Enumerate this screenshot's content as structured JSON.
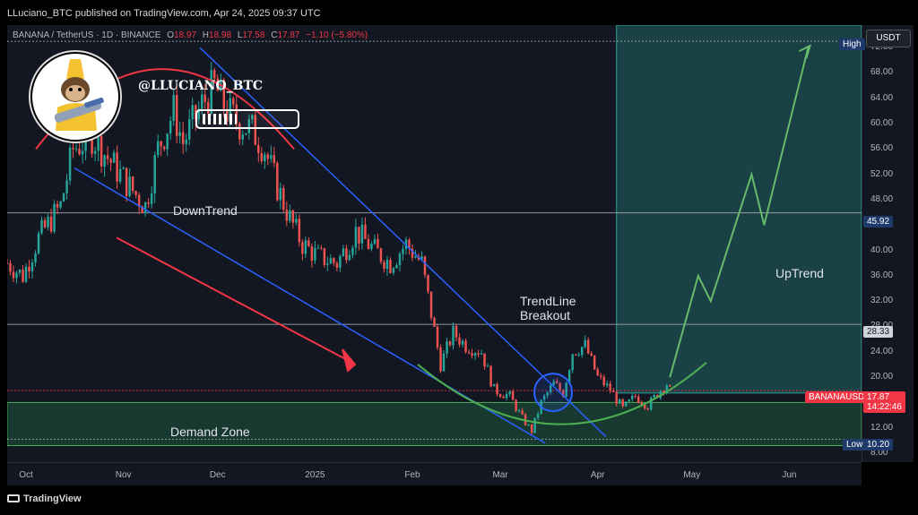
{
  "header": {
    "published_text": "LLuciano_BTC published on TradingView.com, Apr 24, 2025 09:37 UTC"
  },
  "symbol_bar": {
    "symbol": "BANANA / TetherUS · 1D · BINANCE",
    "open_label": "O",
    "open": "18.97",
    "high_label": "H",
    "high": "18.98",
    "low_label": "L",
    "low": "17.58",
    "close_label": "C",
    "close": "17.87",
    "change": "−1.10 (−5.80%)"
  },
  "currency_button": "USDT",
  "author_handle": "@LLUCIANO_BTC",
  "annotations": {
    "downtrend": "DownTrend",
    "trendline_breakout_line1": "TrendLine",
    "trendline_breakout_line2": "Breakout",
    "uptrend": "UpTrend",
    "demand_zone": "Demand Zone"
  },
  "price_badges": {
    "high_label": "High",
    "level_45": "45.92",
    "level_28": "28.33",
    "symbol_tag": "BANANAUSDT",
    "last_price": "17.87",
    "countdown": "14:22:46",
    "low_label": "Low",
    "low_value": "10.20"
  },
  "colors": {
    "up": "#26a69a",
    "down": "#ef5350",
    "background": "#131722",
    "trendline": "#2962ff",
    "arc_red": "#f23645",
    "curve_green": "#4caf50",
    "projection": "#66bb6a",
    "demand_zone": "#1b4d3e",
    "projection_box": "#1d4a4a",
    "badge_blue": "#1e3a6b",
    "badge_red": "#f23645"
  },
  "footer": {
    "logo_text": "TradingView"
  },
  "chart_data": {
    "type": "candlestick",
    "symbol": "BANANA / TetherUS",
    "interval": "1D",
    "exchange": "BINANCE",
    "ylim": [
      8,
      74
    ],
    "y_ticks": [
      "72.00",
      "68.00",
      "64.00",
      "60.00",
      "56.00",
      "52.00",
      "48.00",
      "44.00",
      "40.00",
      "36.00",
      "32.00",
      "28.00",
      "24.00",
      "20.00",
      "16.00",
      "12.00",
      "8.00"
    ],
    "x_ticks": [
      "Oct",
      "Nov",
      "Dec",
      "2025",
      "Feb",
      "Mar",
      "Apr",
      "May",
      "Jun"
    ],
    "x_range": [
      "2024-09-25",
      "2025-06-24"
    ],
    "levels": [
      {
        "label": "High",
        "value": 73.0
      },
      {
        "label": "45.92",
        "value": 45.92
      },
      {
        "label": "28.33",
        "value": 28.33
      },
      {
        "label": "17.87",
        "value": 17.87
      },
      {
        "label": "Low 10.20",
        "value": 10.2
      }
    ],
    "demand_zone": {
      "from": 9.2,
      "to": 16.0
    },
    "last_ohlc": {
      "open": 18.97,
      "high": 18.98,
      "low": 17.58,
      "close": 17.87
    },
    "close_path": [
      {
        "date": "2024-09-25",
        "price": 38.0
      },
      {
        "date": "2024-09-30",
        "price": 36.0
      },
      {
        "date": "2024-10-05",
        "price": 42.0
      },
      {
        "date": "2024-10-12",
        "price": 47.0
      },
      {
        "date": "2024-10-16",
        "price": 56.0
      },
      {
        "date": "2024-10-22",
        "price": 58.0
      },
      {
        "date": "2024-10-28",
        "price": 54.0
      },
      {
        "date": "2024-11-03",
        "price": 50.0
      },
      {
        "date": "2024-11-08",
        "price": 47.0
      },
      {
        "date": "2024-11-12",
        "price": 56.0
      },
      {
        "date": "2024-11-17",
        "price": 62.0
      },
      {
        "date": "2024-11-20",
        "price": 57.0
      },
      {
        "date": "2024-11-26",
        "price": 63.0
      },
      {
        "date": "2024-11-30",
        "price": 66.0
      },
      {
        "date": "2024-12-04",
        "price": 62.0
      },
      {
        "date": "2024-12-08",
        "price": 60.0
      },
      {
        "date": "2024-12-12",
        "price": 59.0
      },
      {
        "date": "2024-12-16",
        "price": 56.0
      },
      {
        "date": "2024-12-20",
        "price": 50.0
      },
      {
        "date": "2024-12-24",
        "price": 45.0
      },
      {
        "date": "2024-12-28",
        "price": 41.0
      },
      {
        "date": "2025-01-02",
        "price": 39.0
      },
      {
        "date": "2025-01-08",
        "price": 38.0
      },
      {
        "date": "2025-01-14",
        "price": 43.0
      },
      {
        "date": "2025-01-20",
        "price": 40.0
      },
      {
        "date": "2025-01-25",
        "price": 38.0
      },
      {
        "date": "2025-01-30",
        "price": 41.0
      },
      {
        "date": "2025-02-04",
        "price": 38.0
      },
      {
        "date": "2025-02-07",
        "price": 30.0
      },
      {
        "date": "2025-02-10",
        "price": 22.0
      },
      {
        "date": "2025-02-14",
        "price": 27.0
      },
      {
        "date": "2025-02-18",
        "price": 25.0
      },
      {
        "date": "2025-02-23",
        "price": 24.0
      },
      {
        "date": "2025-02-27",
        "price": 18.0
      },
      {
        "date": "2025-03-04",
        "price": 17.0
      },
      {
        "date": "2025-03-08",
        "price": 13.5
      },
      {
        "date": "2025-03-11",
        "price": 11.5
      },
      {
        "date": "2025-03-14",
        "price": 16.0
      },
      {
        "date": "2025-03-18",
        "price": 19.0
      },
      {
        "date": "2025-03-21",
        "price": 17.5
      },
      {
        "date": "2025-03-24",
        "price": 24.0
      },
      {
        "date": "2025-03-28",
        "price": 25.0
      },
      {
        "date": "2025-04-01",
        "price": 20.0
      },
      {
        "date": "2025-04-05",
        "price": 18.0
      },
      {
        "date": "2025-04-09",
        "price": 15.0
      },
      {
        "date": "2025-04-13",
        "price": 17.0
      },
      {
        "date": "2025-04-17",
        "price": 15.5
      },
      {
        "date": "2025-04-21",
        "price": 18.0
      },
      {
        "date": "2025-04-23",
        "price": 19.0
      },
      {
        "date": "2025-04-24",
        "price": 17.87
      }
    ],
    "projection_path": [
      {
        "date": "2025-04-24",
        "price": 20.0
      },
      {
        "date": "2025-05-03",
        "price": 36.0
      },
      {
        "date": "2025-05-07",
        "price": 32.0
      },
      {
        "date": "2025-05-20",
        "price": 52.0
      },
      {
        "date": "2025-05-24",
        "price": 44.0
      },
      {
        "date": "2025-06-07",
        "price": 72.0
      }
    ]
  }
}
